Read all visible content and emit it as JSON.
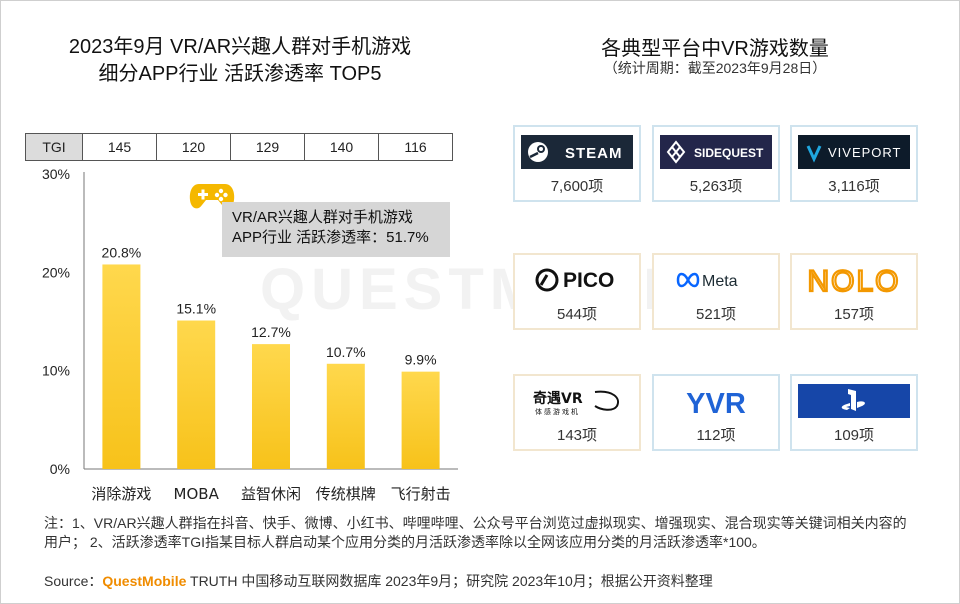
{
  "left_title_line1": "2023年9月 VR/AR兴趣人群对手机游戏",
  "left_title_line2": "细分APP行业 活跃渗透率 TOP5",
  "right_title": "各典型平台中VR游戏数量",
  "right_subtitle": "（统计周期：截至2023年9月28日）",
  "tgi": {
    "header": "TGI",
    "values": [
      "145",
      "120",
      "129",
      "140",
      "116"
    ]
  },
  "callout": {
    "line1": "VR/AR兴趣人群对手机游戏",
    "line2": "APP行业 活跃渗透率：51.7%"
  },
  "watermark": "QUESTMOBILE",
  "chart_data": {
    "type": "bar",
    "title": "2023年9月 VR/AR兴趣人群对手机游戏 细分APP行业 活跃渗透率 TOP5",
    "categories": [
      "消除游戏",
      "MOBA",
      "益智休闲",
      "传统棋牌",
      "飞行射击"
    ],
    "values": [
      20.8,
      15.1,
      12.7,
      10.7,
      9.9
    ],
    "value_labels": [
      "20.8%",
      "15.1%",
      "12.7%",
      "10.7%",
      "9.9%"
    ],
    "y_ticks": [
      "0%",
      "10%",
      "20%",
      "30%"
    ],
    "y_tick_values": [
      0,
      10,
      20,
      30
    ],
    "ylim": [
      0,
      30
    ],
    "bar_color": "#f7c21a",
    "bar_color_light": "#ffd84d"
  },
  "platforms": [
    {
      "logo": "STEAM",
      "count": "7,600项",
      "logo_bg": "#1b2838",
      "logo_fg": "#ffffff",
      "icon": "steam-icon"
    },
    {
      "logo": "SIDEQUEST",
      "count": "5,263项",
      "logo_bg": "#23264a",
      "logo_fg": "#ffffff",
      "icon": "sidequest-icon"
    },
    {
      "logo": "VIVEPORT",
      "count": "3,116项",
      "logo_bg": "#0d1b2a",
      "logo_fg": "#ffffff",
      "icon": "vive-icon"
    },
    {
      "logo": "PICO",
      "count": "544项",
      "logo_bg": "#ffffff",
      "logo_fg": "#111111",
      "icon": "pico-icon"
    },
    {
      "logo": "Meta",
      "count": "521项",
      "logo_bg": "#ffffff",
      "logo_fg": "#1c2b33",
      "icon": "meta-infinity-icon"
    },
    {
      "logo": "NOLO",
      "count": "157项",
      "logo_bg": "#ffffff",
      "logo_fg": "#f39800",
      "icon": "nolo-icon"
    },
    {
      "logo": "奇遇VR",
      "logo_sub": "体感游戏机",
      "count": "143项",
      "logo_bg": "#ffffff",
      "logo_fg": "#111111",
      "icon": "qiyu-icon"
    },
    {
      "logo": "YVR",
      "count": "112项",
      "logo_bg": "#ffffff",
      "logo_fg": "#1f63d6",
      "icon": "yvr-icon"
    },
    {
      "logo": "PS",
      "count": "109项",
      "logo_bg": "#1646a8",
      "logo_fg": "#ffffff",
      "icon": "playstation-icon"
    }
  ],
  "notes": "注：1、VR/AR兴趣人群指在抖音、快手、微博、小红书、哔哩哔哩、公众号平台浏览过虚拟现实、增强现实、混合现实等关键词相关内容的用户； 2、活跃渗透率TGI指某目标人群启动某个应用分类的月活跃渗透率除以全网该应用分类的月活跃渗透率*100。",
  "source": {
    "label": "Source：",
    "brand": "QuestMobile",
    "text": " TRUTH 中国移动互联网数据库 2023年9月；研究院 2023年10月；根据公开资料整理"
  }
}
